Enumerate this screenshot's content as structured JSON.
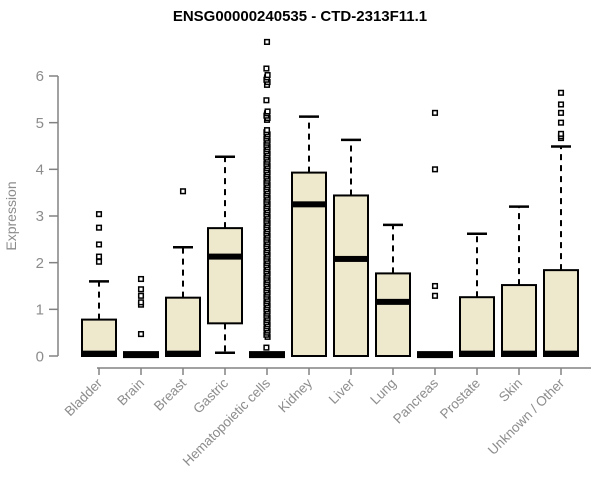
{
  "chart_data": {
    "type": "boxplot",
    "title": "ENSG00000240535 - CTD-2313F11.1",
    "ylabel": "Expression",
    "xlabel": "",
    "yticks": [
      0,
      1,
      2,
      3,
      4,
      5,
      6
    ],
    "ylim": [
      0,
      6.9
    ],
    "grid": "off",
    "legend": "none",
    "categories": [
      "Bladder",
      "Brain",
      "Breast",
      "Gastric",
      "Hematopoietic cells",
      "Kidney",
      "Liver",
      "Lung",
      "Pancreas",
      "Prostate",
      "Skin",
      "Unknown / Other"
    ],
    "boxes": [
      {
        "category": "Bladder",
        "low": 0,
        "q1": 0,
        "median": 0.05,
        "q3": 0.78,
        "high": 1.6,
        "outliers": [
          2.02,
          2.13,
          2.39,
          2.75,
          3.04
        ]
      },
      {
        "category": "Brain",
        "low": 0,
        "q1": 0,
        "median": 0.03,
        "q3": 0.06,
        "high": 0.06,
        "outliers": [
          0.47,
          1.1,
          1.15,
          1.29,
          1.43,
          1.65
        ]
      },
      {
        "category": "Breast",
        "low": 0,
        "q1": 0,
        "median": 0.05,
        "q3": 1.25,
        "high": 2.33,
        "outliers": [
          3.53
        ]
      },
      {
        "category": "Gastric",
        "low": 0.07,
        "q1": 0.7,
        "median": 2.13,
        "q3": 2.74,
        "high": 4.27,
        "outliers": []
      },
      {
        "category": "Hematopoietic cells",
        "low": 0,
        "q1": 0,
        "median": 0.03,
        "q3": 0.06,
        "high": 0.06,
        "outliers": [
          0.18,
          5.06,
          5.1,
          5.15,
          5.2,
          5.24,
          5.48,
          5.81,
          5.87,
          5.92,
          5.97,
          6.02,
          6.16,
          6.73
        ],
        "outlier_band": {
          "min": 0.41,
          "max": 4.84,
          "count": 99
        }
      },
      {
        "category": "Kidney",
        "low": 0,
        "q1": 0,
        "median": 3.25,
        "q3": 3.93,
        "high": 5.13,
        "outliers": []
      },
      {
        "category": "Liver",
        "low": 0,
        "q1": 0,
        "median": 2.08,
        "q3": 3.44,
        "high": 4.63,
        "outliers": []
      },
      {
        "category": "Lung",
        "low": 0,
        "q1": 0,
        "median": 1.16,
        "q3": 1.77,
        "high": 2.81,
        "outliers": []
      },
      {
        "category": "Pancreas",
        "low": 0,
        "q1": 0,
        "median": 0.03,
        "q3": 0.06,
        "high": 0.06,
        "outliers": [
          1.29,
          1.5,
          4.0,
          5.21
        ]
      },
      {
        "category": "Prostate",
        "low": 0,
        "q1": 0,
        "median": 0.05,
        "q3": 1.26,
        "high": 2.62,
        "outliers": []
      },
      {
        "category": "Skin",
        "low": 0,
        "q1": 0,
        "median": 0.05,
        "q3": 1.52,
        "high": 3.2,
        "outliers": []
      },
      {
        "category": "Unknown / Other",
        "low": 0,
        "q1": 0,
        "median": 0.05,
        "q3": 1.84,
        "high": 4.49,
        "outliers": [
          4.67,
          4.71,
          4.76,
          5.0,
          5.21,
          5.39,
          5.64
        ]
      }
    ],
    "colors": {
      "box_fill": "#EEE8CD",
      "box_border": "#000000",
      "median": "#000000",
      "whisker": "#000000",
      "outlier_stroke": "#000000",
      "outlier_fill": "#ffffff",
      "axis_line": "#828282",
      "tick_text": "#8c8c8c",
      "title_text": "#000000"
    }
  }
}
